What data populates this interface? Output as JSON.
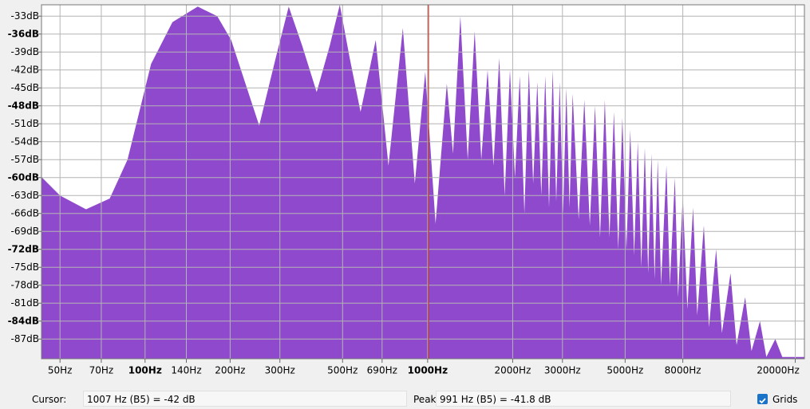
{
  "chart_data": {
    "type": "area",
    "xscale": "log",
    "grid": true,
    "color": "#8f49cc",
    "cursor_color": "#c0392b",
    "xlim": [
      43,
      21550
    ],
    "ylim": [
      -90.3,
      -31.1
    ],
    "xticks": [
      {
        "value": 50,
        "label": "50Hz"
      },
      {
        "value": 70,
        "label": "70Hz"
      },
      {
        "value": 100,
        "label": "100Hz"
      },
      {
        "value": 140,
        "label": "140Hz"
      },
      {
        "value": 200,
        "label": "200Hz"
      },
      {
        "value": 300,
        "label": "300Hz"
      },
      {
        "value": 500,
        "label": "500Hz"
      },
      {
        "value": 690,
        "label": "690Hz"
      },
      {
        "value": 1000,
        "label": "1000Hz"
      },
      {
        "value": 2000,
        "label": "2000Hz"
      },
      {
        "value": 3000,
        "label": "3000Hz"
      },
      {
        "value": 5000,
        "label": "5000Hz"
      },
      {
        "value": 8000,
        "label": "8000Hz"
      },
      {
        "value": 20000,
        "label": "20000Hz"
      }
    ],
    "yticks": [
      {
        "value": -33,
        "label": "-33dB"
      },
      {
        "value": -36,
        "label": "-36dB"
      },
      {
        "value": -39,
        "label": "-39dB"
      },
      {
        "value": -42,
        "label": "-42dB"
      },
      {
        "value": -45,
        "label": "-45dB"
      },
      {
        "value": -48,
        "label": "-48dB"
      },
      {
        "value": -51,
        "label": "-51dB"
      },
      {
        "value": -54,
        "label": "-54dB"
      },
      {
        "value": -57,
        "label": "-57dB"
      },
      {
        "value": -60,
        "label": "-60dB"
      },
      {
        "value": -63,
        "label": "-63dB"
      },
      {
        "value": -66,
        "label": "-66dB"
      },
      {
        "value": -69,
        "label": "-69dB"
      },
      {
        "value": -72,
        "label": "-72dB"
      },
      {
        "value": -75,
        "label": "-75dB"
      },
      {
        "value": -78,
        "label": "-78dB"
      },
      {
        "value": -81,
        "label": "-81dB"
      },
      {
        "value": -84,
        "label": "-84dB"
      },
      {
        "value": -87,
        "label": "-87dB"
      }
    ],
    "cursor": 1007,
    "x": [
      43,
      50,
      61.8,
      75,
      86.7,
      105,
      125,
      153.6,
      180,
      201.8,
      253.5,
      290,
      322.5,
      360,
      404.9,
      450,
      489,
      530,
      579,
      655,
      727,
      817,
      901,
      980.7,
      1067,
      1169,
      1230,
      1306,
      1386,
      1467,
      1548,
      1630,
      1711,
      1793,
      1874,
      1956,
      2037,
      2119,
      2200,
      2282,
      2363,
      2445,
      2526,
      2608,
      2689,
      2771,
      2852,
      2934,
      3015,
      3097,
      3178,
      3260,
      3423,
      3586,
      3749,
      3912,
      4075,
      4238,
      4401,
      4564,
      4727,
      4890,
      5053,
      5216,
      5379,
      5542,
      5705,
      5868,
      6031,
      6194,
      6357,
      6520,
      6700,
      7000,
      7200,
      7500,
      7700,
      8000,
      8300,
      8700,
      9000,
      9500,
      9900,
      10500,
      11000,
      11800,
      12400,
      13300,
      14000,
      15000,
      15800,
      17000,
      18000,
      21550
    ],
    "values": [
      -59.9,
      -63,
      -65.3,
      -63.5,
      -57,
      -41,
      -34,
      -31.4,
      -33,
      -37,
      -51.3,
      -40,
      -31.4,
      -38,
      -45.7,
      -38,
      -31.1,
      -40,
      -49,
      -37,
      -58,
      -35,
      -61,
      -42.3,
      -67.7,
      -44.3,
      -56,
      -33,
      -57,
      -35.5,
      -57,
      -42,
      -58,
      -40,
      -63,
      -42,
      -60,
      -43,
      -66,
      -42,
      -61,
      -44,
      -63,
      -43,
      -65,
      -42,
      -64,
      -44,
      -66,
      -45,
      -65,
      -46,
      -67,
      -47,
      -68,
      -48,
      -70,
      -47,
      -70,
      -49,
      -72,
      -50,
      -72,
      -52,
      -73,
      -54,
      -75,
      -55,
      -76,
      -56,
      -77,
      -57,
      -78,
      -58,
      -78,
      -60,
      -80,
      -63,
      -82,
      -65,
      -83,
      -68,
      -85,
      -72,
      -86,
      -76,
      -88,
      -80,
      -89,
      -84,
      -90,
      -87,
      -90,
      -90
    ]
  },
  "status": {
    "cursor_label": "Cursor:",
    "cursor_text": "1007 Hz (B5) = -42 dB",
    "peak_label": "Peak:",
    "peak_text": "991 Hz (B5) = -41.8 dB",
    "grids_label": "Grids"
  }
}
